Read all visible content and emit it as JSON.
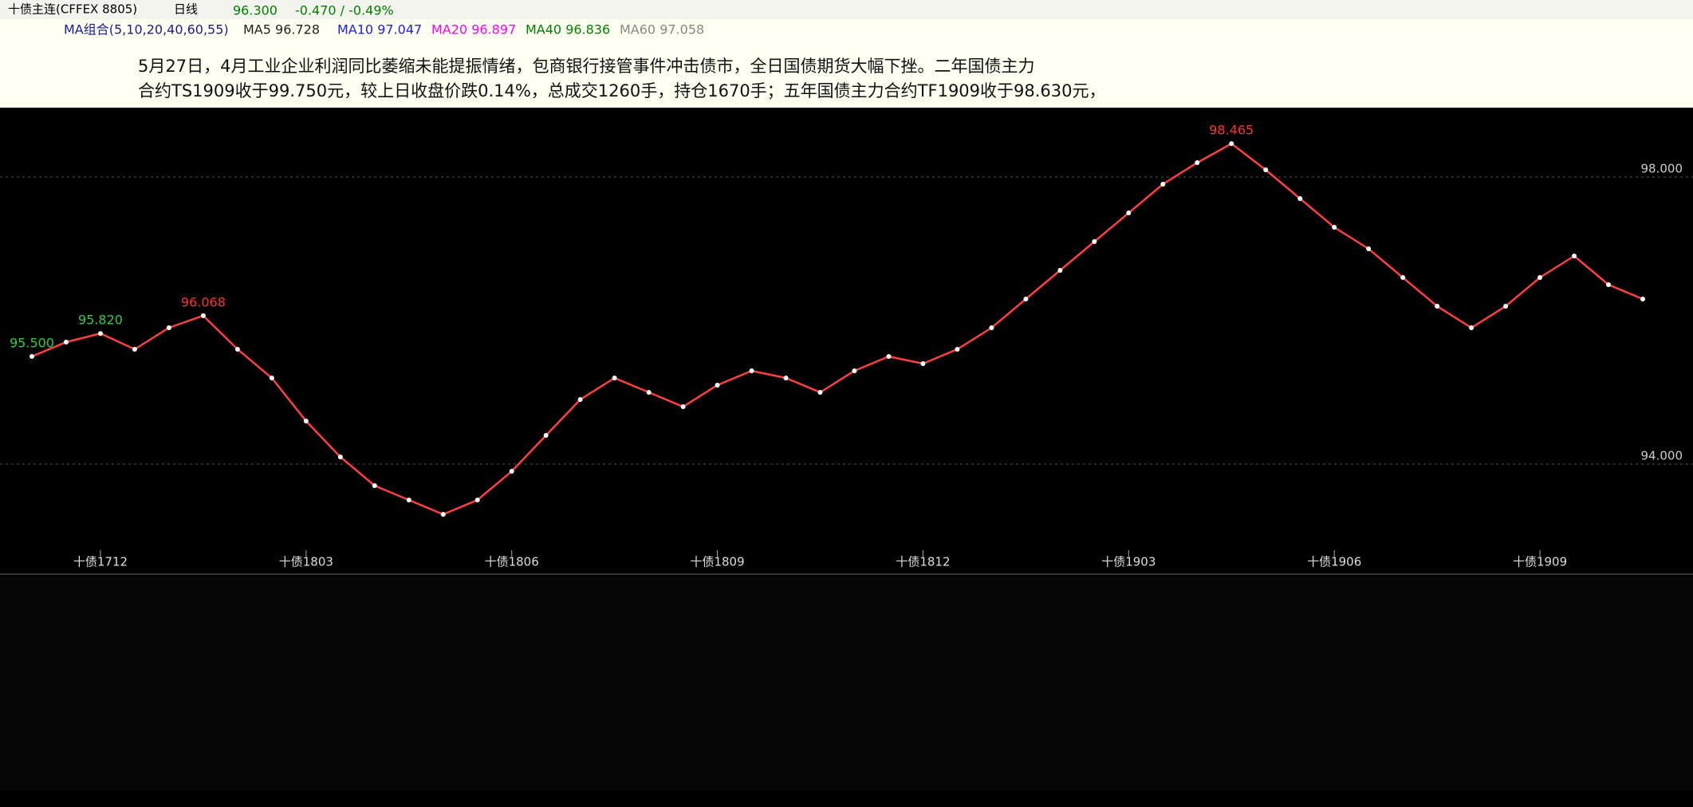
{
  "header": {
    "symbol": "十债主连(CFFEX 8805)",
    "period": "日线",
    "price": "96.300",
    "change": "-0.470 / -0.49%"
  },
  "ma_legend": {
    "title": "MA组合(5,10,20,40,60,55)",
    "items": [
      {
        "text": "MA5 96.728",
        "color": "#222222"
      },
      {
        "text": "MA10 97.047",
        "color": "#1a1aff"
      },
      {
        "text": "MA20 96.897",
        "color": "#ff00ff"
      },
      {
        "text": "MA40 96.836",
        "color": "#008000"
      },
      {
        "text": "MA60 97.058",
        "color": "#888888"
      }
    ]
  },
  "annotation": {
    "lines": [
      "5月27日，4月工业企业利润同比萎缩未能提振情绪，包商银行接管事件冲击债市，全日国债期货大幅下挫。二年国债主力",
      "合约TS1909收于99.750元，较上日收盘价跌0.14%，总成交1260手，持仓1670手；五年国债主力合约TF1909收于98.630元，"
    ]
  },
  "chart_data": {
    "type": "line",
    "color": "#ff4040",
    "categories": [
      null,
      null,
      "十债1712",
      null,
      null,
      null,
      null,
      null,
      "十债1803",
      null,
      null,
      null,
      null,
      null,
      "十债1806",
      null,
      null,
      null,
      null,
      null,
      "十债1809",
      null,
      null,
      null,
      null,
      null,
      "十债1812",
      null,
      null,
      null,
      null,
      null,
      "十债1903",
      null,
      null,
      null,
      null,
      null,
      "十债1906",
      null,
      null,
      null,
      null,
      null,
      "十债1909",
      null,
      null,
      null
    ],
    "values": [
      95.5,
      95.7,
      95.82,
      95.6,
      95.9,
      96.068,
      95.6,
      95.2,
      94.6,
      94.1,
      93.7,
      93.5,
      93.3,
      93.5,
      93.9,
      94.4,
      94.9,
      95.2,
      95.0,
      94.8,
      95.1,
      95.3,
      95.2,
      95.0,
      95.3,
      95.5,
      95.4,
      95.6,
      95.9,
      96.3,
      96.7,
      97.1,
      97.5,
      97.9,
      98.2,
      98.465,
      98.1,
      97.7,
      97.3,
      97.0,
      96.6,
      96.2,
      95.9,
      96.2,
      96.6,
      96.9,
      96.5,
      96.3
    ],
    "ylim": [
      92.8,
      98.8
    ],
    "yticks": [
      {
        "value": 98,
        "label": "98.000"
      },
      {
        "value": 94,
        "label": "94.000"
      }
    ],
    "extreme_labels": [
      {
        "value": 98.465,
        "label": "98.465"
      },
      {
        "value": 95.82,
        "label": "95.820"
      },
      {
        "value": 96.068,
        "label": "96.068"
      },
      {
        "value": 95.5,
        "label": "95.500"
      }
    ]
  }
}
